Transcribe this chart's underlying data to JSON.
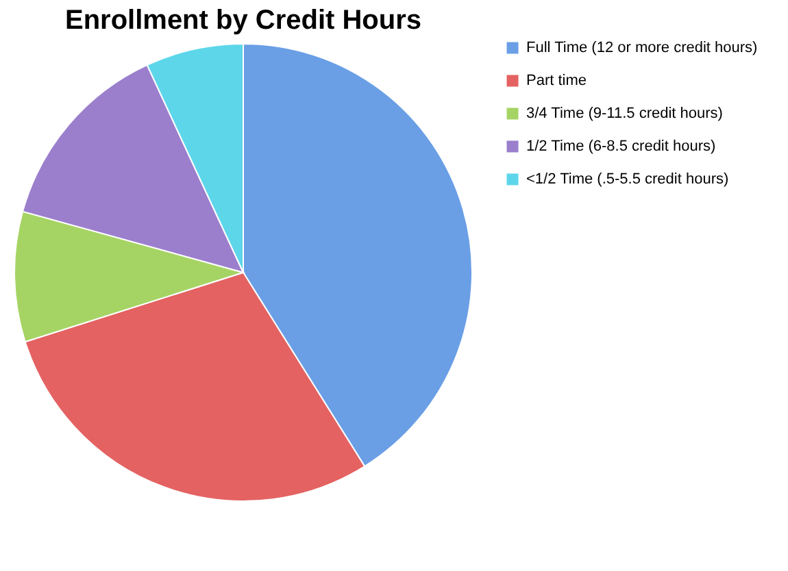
{
  "chart_data": {
    "type": "pie",
    "title": "Enrollment by Credit Hours",
    "categories": [
      "Full Time (12 or more credit hours)",
      "Part time",
      "3/4 Time (9-11.5 credit hours)",
      "1/2 Time (6-8.5 credit hours)",
      "<1/2 Time (.5-5.5 credit hours)"
    ],
    "values": [
      41.1,
      29,
      9.2,
      13.8,
      6.9
    ],
    "colors": [
      "#6a9fe6",
      "#e46262",
      "#a6d464",
      "#9b7fcc",
      "#5dd6ea"
    ],
    "legend": "right"
  }
}
